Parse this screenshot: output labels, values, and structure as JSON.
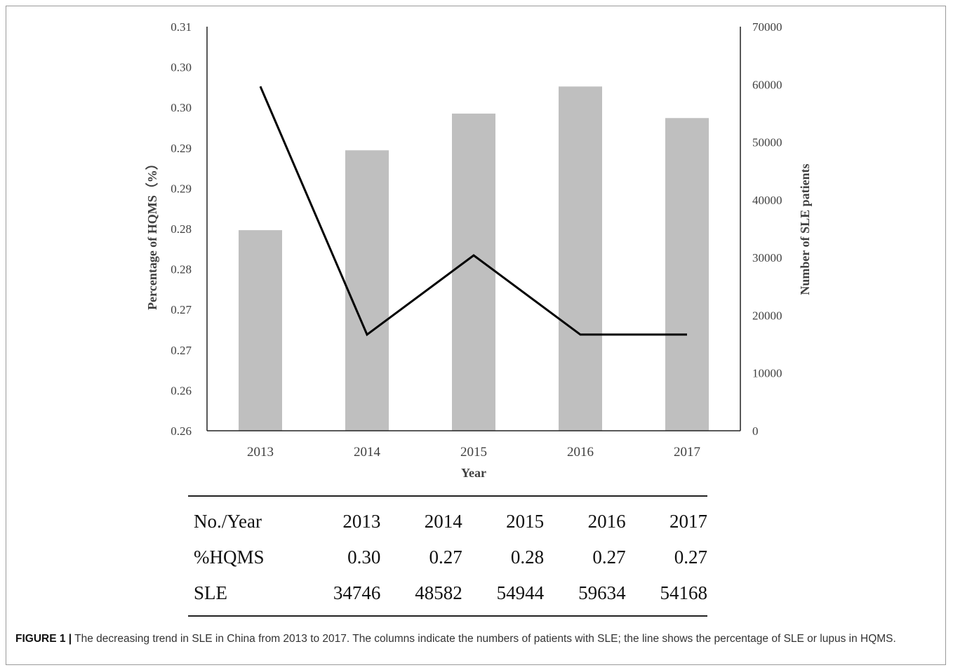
{
  "chart_data": {
    "type": "bar",
    "categories": [
      "2013",
      "2014",
      "2015",
      "2016",
      "2017"
    ],
    "series": [
      {
        "kind": "bar",
        "axis": "right",
        "values": [
          34746,
          48582,
          54944,
          59634,
          54168
        ],
        "color": "#bfbfbf"
      },
      {
        "kind": "line",
        "axis": "left",
        "values": [
          0.3026,
          0.2719,
          0.2817,
          0.2719,
          0.2719
        ],
        "color": "#000000"
      }
    ],
    "xlabel": "Year",
    "ylabel_left": "Percentage of HQMS（%）",
    "ylabel_right": "Number of SLE patients",
    "y_left_ticks": [
      "0.26",
      "0.26",
      "0.27",
      "0.27",
      "0.28",
      "0.28",
      "0.29",
      "0.29",
      "0.30",
      "0.30",
      "0.31"
    ],
    "y_left_range": [
      0.26,
      0.31
    ],
    "y_right_ticks": [
      "0",
      "10000",
      "20000",
      "30000",
      "40000",
      "50000",
      "60000",
      "70000"
    ],
    "y_right_range": [
      0,
      70000
    ],
    "grid": false,
    "legend": "none"
  },
  "table": {
    "header": [
      "No./Year",
      "2013",
      "2014",
      "2015",
      "2016",
      "2017"
    ],
    "rows": [
      [
        "%HQMS",
        "0.30",
        "0.27",
        "0.28",
        "0.27",
        "0.27"
      ],
      [
        "SLE",
        "34746",
        "48582",
        "54944",
        "59634",
        "54168"
      ]
    ]
  },
  "caption": {
    "label": "FIGURE 1 |",
    "text": "The decreasing trend in SLE in China from 2013 to 2017. The columns indicate the numbers of patients with SLE; the line shows the percentage of SLE or lupus in HQMS."
  }
}
